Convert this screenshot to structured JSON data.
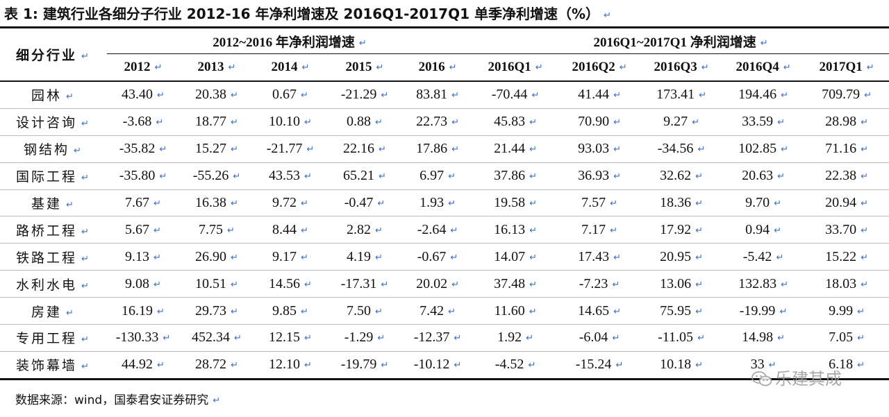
{
  "title": "表 1: 建筑行业各细分子行业 2012-16 年净利增速及 2016Q1-2017Q1 单季净利增速（%）",
  "table": {
    "row_header": "细分行业",
    "groups": [
      {
        "label": "2012~2016 年净利润增速"
      },
      {
        "label": "2016Q1~2017Q1 净利润增速"
      }
    ],
    "columns": [
      "2012",
      "2013",
      "2014",
      "2015",
      "2016",
      "2016Q1",
      "2016Q2",
      "2016Q3",
      "2016Q4",
      "2017Q1"
    ],
    "rows": [
      {
        "name": "园林",
        "values": [
          "43.40",
          "20.38",
          "0.67",
          "-21.29",
          "83.81",
          "-70.44",
          "41.44",
          "173.41",
          "194.46",
          "709.79"
        ]
      },
      {
        "name": "设计咨询",
        "values": [
          "-3.68",
          "18.77",
          "10.10",
          "0.88",
          "22.73",
          "45.83",
          "70.90",
          "9.27",
          "33.59",
          "28.98"
        ]
      },
      {
        "name": "钢结构",
        "values": [
          "-35.82",
          "15.27",
          "-21.77",
          "22.16",
          "17.86",
          "21.44",
          "93.03",
          "-34.56",
          "102.85",
          "71.16"
        ]
      },
      {
        "name": "国际工程",
        "values": [
          "-35.80",
          "-55.26",
          "43.53",
          "65.21",
          "6.97",
          "37.86",
          "36.93",
          "32.62",
          "20.63",
          "22.38"
        ]
      },
      {
        "name": "基建",
        "values": [
          "7.67",
          "16.38",
          "9.72",
          "-0.47",
          "1.93",
          "19.58",
          "7.57",
          "18.36",
          "9.70",
          "20.94"
        ]
      },
      {
        "name": "路桥工程",
        "values": [
          "5.67",
          "7.75",
          "8.44",
          "2.82",
          "-2.64",
          "16.13",
          "7.17",
          "17.92",
          "0.94",
          "33.70"
        ]
      },
      {
        "name": "铁路工程",
        "values": [
          "9.13",
          "26.90",
          "9.17",
          "4.19",
          "-0.67",
          "14.07",
          "17.43",
          "20.95",
          "-5.42",
          "15.22"
        ]
      },
      {
        "name": "水利水电",
        "values": [
          "9.08",
          "10.51",
          "14.56",
          "-17.31",
          "20.02",
          "37.48",
          "-7.23",
          "13.06",
          "132.83",
          "18.03"
        ]
      },
      {
        "name": "房建",
        "values": [
          "16.19",
          "29.73",
          "9.85",
          "7.50",
          "7.42",
          "11.60",
          "14.65",
          "75.95",
          "-19.99",
          "9.99"
        ]
      },
      {
        "name": "专用工程",
        "values": [
          "-130.33",
          "452.34",
          "12.15",
          "-1.29",
          "-12.37",
          "1.92",
          "-6.04",
          "-11.05",
          "14.98",
          "7.05"
        ]
      },
      {
        "name": "装饰幕墙",
        "values": [
          "44.92",
          "28.72",
          "12.10",
          "-19.79",
          "-10.12",
          "-4.52",
          "-15.24",
          "10.18",
          "33",
          "6.18"
        ]
      }
    ]
  },
  "footer": "数据来源：wind，国泰君安证券研究",
  "watermark": "乐建其成",
  "icons": {
    "paragraph_mark": "return-arrow-icon",
    "watermark": "wechat-icon"
  },
  "colors": {
    "mark": "#3a6fc6",
    "rule": "#111111",
    "row_line": "#bbbbbb",
    "watermark": "#9a9a9a"
  }
}
